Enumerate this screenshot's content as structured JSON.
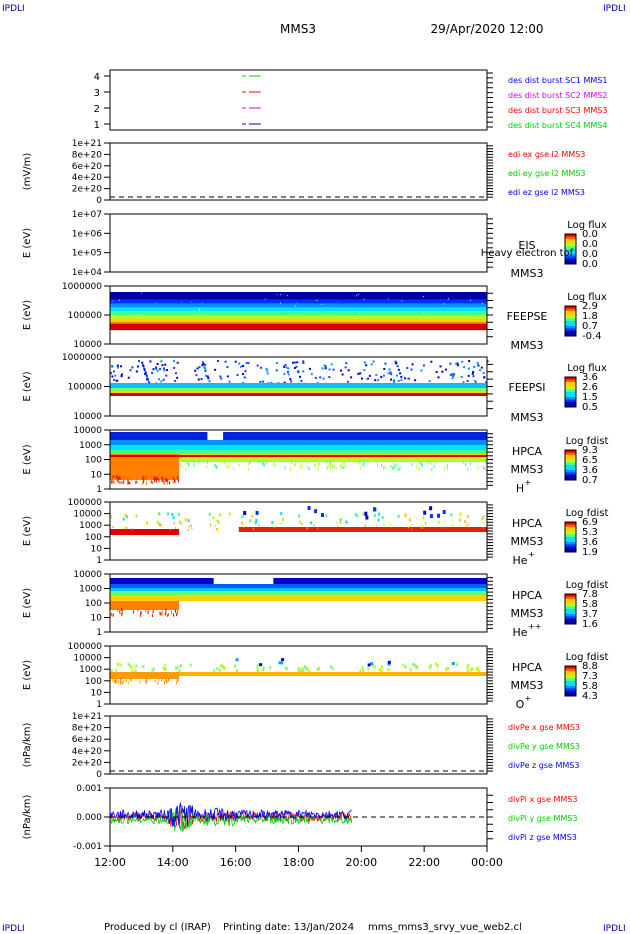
{
  "header": {
    "corner_left_top": "IPDLI",
    "corner_right_top": "IPDLI",
    "corner_left_bottom": "IPDLI",
    "corner_right_bottom": "IPDLI",
    "title": "MMS3",
    "date": "29/Apr/2020 12:00"
  },
  "footer": {
    "produced": "Produced by cl (IRAP)",
    "printing": "Printing date: 13/Jan/2024",
    "file": "mms_mms3_srvy_vue_web2.cl"
  },
  "colors": {
    "blue": "#0000ff",
    "green": "#00cc00",
    "red": "#ff0000",
    "magenta": "#dd00dd"
  },
  "x_axis": {
    "ticks": [
      "12:00",
      "14:00",
      "16:00",
      "18:00",
      "20:00",
      "22:00",
      "00:00"
    ]
  },
  "chart_data": [
    {
      "type": "line",
      "id": "burst",
      "ylabel": "",
      "yticks": [
        "4",
        "3",
        "2",
        "1"
      ],
      "series": [
        {
          "name": "des dist burst SC1 MMS1",
          "color": "#0000ff"
        },
        {
          "name": "des dist burst SC2 MMS2",
          "color": "#dd00dd"
        },
        {
          "name": "des dist burst SC3 MMS3",
          "color": "#ff0000"
        },
        {
          "name": "des dist burst SC4 MMS4",
          "color": "#00cc00"
        }
      ],
      "markers": [
        {
          "value": 4,
          "color": "#00cc00"
        },
        {
          "value": 3,
          "color": "#ff0000"
        },
        {
          "value": 2,
          "color": "#dd00dd"
        },
        {
          "value": 1,
          "color": "#0000ff"
        }
      ],
      "x_range_hours": [
        16.2,
        16.8
      ]
    },
    {
      "type": "line",
      "id": "edi",
      "ylabel": "(mV/m)",
      "yticks": [
        "1e+21",
        "8e+20",
        "6e+20",
        "4e+20",
        "2e+20",
        "0"
      ],
      "series": [
        {
          "name": "edi ex gse l2 MMS3",
          "color": "#ff0000"
        },
        {
          "name": "edi ey gse l2 MMS3",
          "color": "#00cc00"
        },
        {
          "name": "edi ez gse l2 MMS3",
          "color": "#0000ff"
        }
      ],
      "zero_line": true
    },
    {
      "type": "heatmap",
      "id": "eis",
      "ylabel": "E (eV)",
      "yticks": [
        "1e+07",
        "1e+06",
        "1e+05",
        "1e+04"
      ],
      "side_labels": [
        "EIS",
        "Heavy electron tof",
        "MMS3"
      ],
      "colorbar": {
        "title": "Log flux",
        "ticks": [
          "0.0",
          "0.0",
          "0.0",
          "0.0"
        ]
      }
    },
    {
      "type": "heatmap",
      "id": "feepse",
      "ylabel": "E (eV)",
      "yticks": [
        "1000000",
        "100000",
        "10000"
      ],
      "side_labels": [
        "FEEPSE",
        "MMS3"
      ],
      "colorbar": {
        "title": "Log flux",
        "ticks": [
          "2.9",
          "1.8",
          "0.7",
          "-0.4"
        ]
      }
    },
    {
      "type": "heatmap",
      "id": "feepsi",
      "ylabel": "E (eV)",
      "yticks": [
        "1000000",
        "100000",
        "10000"
      ],
      "side_labels": [
        "FEEPSI",
        "MMS3"
      ],
      "colorbar": {
        "title": "Log flux",
        "ticks": [
          "3.6",
          "2.6",
          "1.5",
          "0.5"
        ]
      }
    },
    {
      "type": "heatmap",
      "id": "hpca_h",
      "ylabel": "E (eV)",
      "yticks": [
        "10000",
        "1000",
        "100",
        "10",
        "1"
      ],
      "side_labels": [
        "HPCA",
        "MMS3",
        "H",
        "+"
      ],
      "colorbar": {
        "title": "Log fdist",
        "ticks": [
          "9.3",
          "6.5",
          "3.6",
          "0.7"
        ]
      }
    },
    {
      "type": "heatmap",
      "id": "hpca_he",
      "ylabel": "E (eV)",
      "yticks": [
        "100000",
        "10000",
        "1000",
        "100",
        "10",
        "1"
      ],
      "side_labels": [
        "HPCA",
        "MMS3",
        "He",
        "+"
      ],
      "colorbar": {
        "title": "Log fdist",
        "ticks": [
          "6.9",
          "5.3",
          "3.6",
          "1.9"
        ]
      }
    },
    {
      "type": "heatmap",
      "id": "hpca_hepp",
      "ylabel": "E (eV)",
      "yticks": [
        "10000",
        "1000",
        "100",
        "10",
        "1"
      ],
      "side_labels": [
        "HPCA",
        "MMS3",
        "He",
        "++"
      ],
      "colorbar": {
        "title": "Log fdist",
        "ticks": [
          "7.8",
          "5.8",
          "3.7",
          "1.6"
        ]
      }
    },
    {
      "type": "heatmap",
      "id": "hpca_o",
      "ylabel": "E (eV)",
      "yticks": [
        "100000",
        "10000",
        "1000",
        "100",
        "10",
        "1"
      ],
      "side_labels": [
        "HPCA",
        "MMS3",
        "O",
        "+"
      ],
      "colorbar": {
        "title": "Log fdist",
        "ticks": [
          "8.8",
          "7.3",
          "5.8",
          "4.3"
        ]
      }
    },
    {
      "type": "line",
      "id": "divpe",
      "ylabel": "(nPa/km)",
      "yticks": [
        "1e+21",
        "8e+20",
        "6e+20",
        "4e+20",
        "2e+20",
        "0"
      ],
      "series": [
        {
          "name": "divPe x gse MMS3",
          "color": "#ff0000"
        },
        {
          "name": "divPe y gse MMS3",
          "color": "#00cc00"
        },
        {
          "name": "divPe z gse MMS3",
          "color": "#0000ff"
        }
      ],
      "zero_line": true
    },
    {
      "type": "line",
      "id": "divpi",
      "ylabel": "(nPa/km)",
      "yticks": [
        "0.001",
        "0.000",
        "-0.001"
      ],
      "ylim": [
        -0.0014,
        0.0014
      ],
      "series": [
        {
          "name": "divPi x gse MMS3",
          "color": "#ff0000"
        },
        {
          "name": "divPi y gse MMS3",
          "color": "#00cc00"
        },
        {
          "name": "divPi z gse MMS3",
          "color": "#0000ff"
        }
      ],
      "data_x_range_hours": [
        12.0,
        19.7
      ],
      "zero_line": true
    }
  ]
}
